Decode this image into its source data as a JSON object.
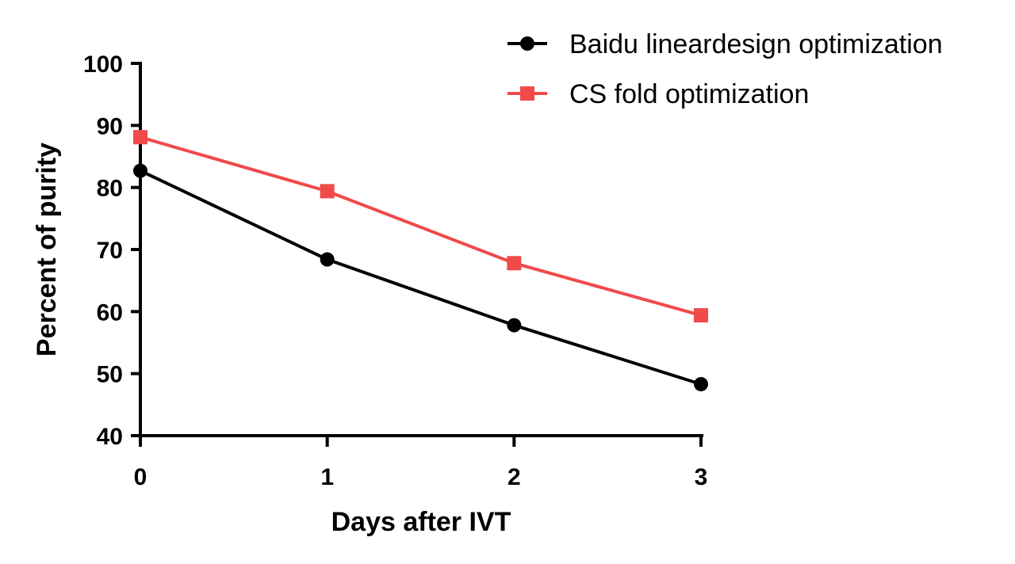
{
  "chart_data": {
    "type": "line",
    "title": "",
    "xlabel": "Days after IVT",
    "ylabel": "Percent of purity",
    "x": [
      0,
      1,
      2,
      3
    ],
    "x_tick_labels": [
      "0",
      "1",
      "2",
      "3"
    ],
    "xlim": [
      0,
      3
    ],
    "ylim": [
      40,
      100
    ],
    "y_ticks": [
      40,
      50,
      60,
      70,
      80,
      90,
      100
    ],
    "y_tick_labels": [
      "40",
      "50",
      "60",
      "70",
      "80",
      "90",
      "100"
    ],
    "grid": false,
    "legend_position": "top-right",
    "series": [
      {
        "name": "Baidu lineardesign optimization",
        "marker": "circle",
        "color": "#000000",
        "values": [
          82.7,
          68.4,
          57.8,
          48.3
        ]
      },
      {
        "name": "CS fold optimization",
        "marker": "square",
        "color": "#f04a4a",
        "values": [
          88.1,
          79.4,
          67.8,
          59.4
        ]
      }
    ]
  }
}
